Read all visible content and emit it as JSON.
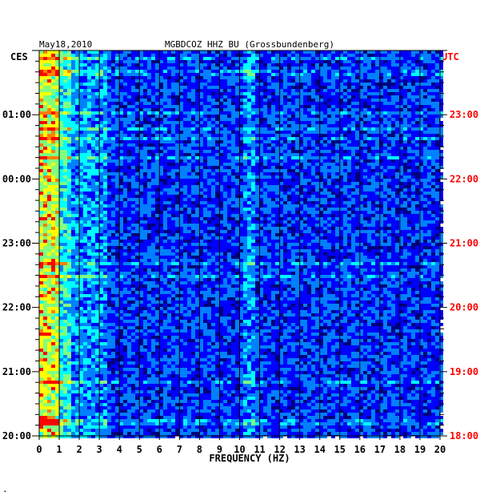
{
  "chart_data": {
    "type": "heatmap",
    "date": "May18,2010",
    "station": "MGBDCOZ HHZ BU (Grossbundenberg)",
    "left_corner_label": "CES",
    "right_corner_label": "UTC",
    "xlabel": "FREQUENCY (HZ)",
    "xlim": [
      0,
      20
    ],
    "x_ticks": [
      "0",
      "1",
      "2",
      "3",
      "4",
      "5",
      "6",
      "7",
      "8",
      "9",
      "10",
      "11",
      "12",
      "13",
      "14",
      "15",
      "16",
      "17",
      "18",
      "19",
      "20"
    ],
    "left_time_labels": [
      "01:00",
      "00:00",
      "23:00",
      "22:00",
      "21:00",
      "20:00"
    ],
    "right_time_labels": [
      "23:00",
      "22:00",
      "21:00",
      "20:00",
      "19:00",
      "18:00"
    ],
    "time_label_hours_from_bottom": [
      5,
      4,
      3,
      2,
      1,
      0
    ],
    "hours_shown": 6,
    "colorscale": [
      "#00007f",
      "#0000ff",
      "#0080ff",
      "#00ffff",
      "#80ff80",
      "#ffff00",
      "#ff8000",
      "#ff0000"
    ],
    "footnote": "."
  }
}
